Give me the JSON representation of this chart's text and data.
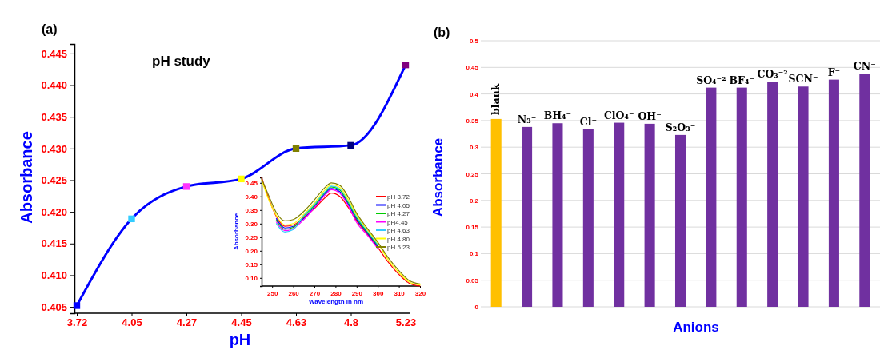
{
  "chart_data": [
    {
      "type": "line",
      "title": "pH study",
      "xlabel": "pH",
      "ylabel": "Absorbance",
      "annotations": [
        "(a)"
      ],
      "categories": [
        "3.72",
        "4.05",
        "4.27",
        "4.45",
        "4.63",
        "4.8",
        "5.23"
      ],
      "marker": "square",
      "ylim": [
        0.404,
        0.4465
      ],
      "yticks": [
        0.405,
        {
          "value": 0.41,
          "label": "0.410"
        },
        0.415,
        {
          "value": 0.42,
          "label": "0.420"
        },
        0.425,
        {
          "value": 0.43,
          "label": "0.430"
        },
        0.435,
        {
          "value": 0.44,
          "label": "0.440"
        },
        0.445
      ],
      "series": [
        {
          "color": "#0000ff",
          "colors": [
            "#0000ff",
            "#33ccff",
            "#ff33ff",
            "#ffff00",
            "#808000",
            "#000080",
            "#800080"
          ],
          "values": [
            0.4052,
            0.4189,
            0.424,
            0.4252,
            0.43,
            0.4305,
            0.4432
          ]
        }
      ]
    },
    {
      "type": "line",
      "xlabel": "Wavelength in nm",
      "ylabel": "Absorbance",
      "legend": "right",
      "x": [
        245,
        248,
        252,
        256,
        260,
        265,
        270,
        275,
        278,
        282,
        286,
        290,
        295,
        300,
        305,
        310,
        315,
        320
      ],
      "xlim": [
        245,
        320
      ],
      "xticks": [
        250,
        260,
        270,
        280,
        290,
        300,
        310,
        320
      ],
      "ylim": [
        0.07,
        0.47
      ],
      "yticks": [
        {
          "value": 0.1,
          "label": "0.10"
        },
        0.15,
        {
          "value": 0.2,
          "label": "0.20"
        },
        0.25,
        {
          "value": 0.3,
          "label": "0.30"
        },
        0.35,
        {
          "value": 0.4,
          "label": "0.40"
        },
        0.45
      ],
      "series": [
        {
          "name": "pH 3.72",
          "color": "#ff0000",
          "values": [
            0.47,
            0.4,
            0.326,
            0.29,
            0.295,
            0.323,
            0.355,
            0.395,
            0.412,
            0.4,
            0.36,
            0.31,
            0.262,
            0.212,
            0.158,
            0.113,
            0.08,
            0.07
          ]
        },
        {
          "name": "pH 4.05",
          "color": "#0000ff",
          "values": [
            null,
            null,
            0.318,
            0.284,
            0.29,
            0.319,
            0.362,
            0.41,
            0.429,
            0.418,
            0.372,
            0.316,
            0.266,
            0.216,
            null,
            null,
            null,
            null
          ]
        },
        {
          "name": "pH 4.27",
          "color": "#00cc00",
          "values": [
            null,
            null,
            0.312,
            0.279,
            0.286,
            0.327,
            0.367,
            0.415,
            0.435,
            0.424,
            0.378,
            0.322,
            0.27,
            0.22,
            null,
            null,
            null,
            null
          ]
        },
        {
          "name": "pH4.45",
          "color": "#ff00ff",
          "values": [
            null,
            null,
            0.306,
            0.274,
            0.282,
            0.315,
            0.358,
            0.404,
            0.425,
            0.412,
            0.366,
            0.304,
            0.258,
            0.208,
            null,
            null,
            null,
            null
          ]
        },
        {
          "name": "pH 4.63",
          "color": "#33ccff",
          "values": [
            null,
            null,
            0.3,
            0.269,
            0.278,
            0.331,
            0.371,
            0.418,
            0.438,
            0.428,
            0.383,
            0.327,
            0.274,
            0.224,
            null,
            null,
            null,
            null
          ]
        },
        {
          "name": "pH 4.80",
          "color": "#ffff00",
          "values": [
            0.46,
            0.395,
            0.33,
            0.295,
            0.3,
            0.335,
            0.376,
            0.424,
            0.443,
            0.433,
            0.388,
            0.332,
            0.278,
            0.228,
            0.166,
            0.12,
            0.085,
            0.074
          ]
        },
        {
          "name": "pH 5.23",
          "color": "#808000",
          "values": [
            0.465,
            0.41,
            0.34,
            0.31,
            0.315,
            0.345,
            0.387,
            0.433,
            0.45,
            0.441,
            0.398,
            0.338,
            0.283,
            0.232,
            0.174,
            0.127,
            0.09,
            0.078
          ]
        }
      ]
    },
    {
      "type": "bar",
      "xlabel": "Anions",
      "ylabel": "Absorbance",
      "annotations": [
        "(b)"
      ],
      "grid": "y",
      "categories": [
        "blank",
        "N₃⁻",
        "BH₄⁻",
        "Cl⁻",
        "ClO₄⁻",
        "OH⁻",
        "S₂O₃⁻",
        "SO₄⁻²",
        "BF₄⁻",
        "CO₃⁻²",
        "SCN⁻",
        "F⁻",
        "CN⁻"
      ],
      "values": [
        0.353,
        0.338,
        0.345,
        0.334,
        0.346,
        0.344,
        0.323,
        0.412,
        0.412,
        0.423,
        0.414,
        0.427,
        0.438
      ],
      "colors": [
        "#ffc000",
        "#7030a0",
        "#7030a0",
        "#7030a0",
        "#7030a0",
        "#7030a0",
        "#7030a0",
        "#7030a0",
        "#7030a0",
        "#7030a0",
        "#7030a0",
        "#7030a0",
        "#7030a0"
      ],
      "ylim": [
        0,
        0.5
      ],
      "yticks": [
        0,
        0.05,
        0.1,
        0.15,
        0.2,
        0.25,
        0.3,
        0.35,
        0.4,
        0.45,
        0.5
      ]
    }
  ]
}
